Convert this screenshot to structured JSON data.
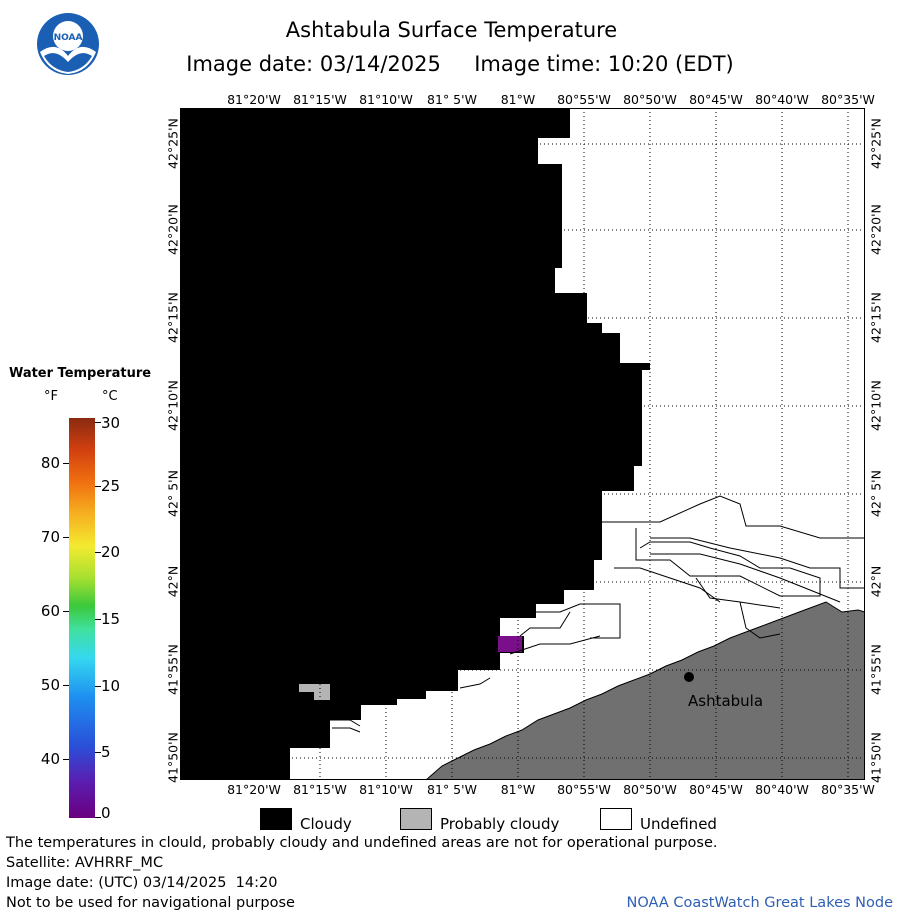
{
  "title": "Ashtabula Surface Temperature",
  "subtitle": "Image date: 03/14/2025     Image time: 10:20 (EDT)",
  "logo_text": "NOAA",
  "map": {
    "lon_labels": [
      "81°20'W",
      "81°15'W",
      "81°10'W",
      "81° 5'W",
      "81°W",
      "80°55'W",
      "80°50'W",
      "80°45'W",
      "80°40'W",
      "80°35'W"
    ],
    "lat_labels": [
      "42°25'N",
      "42°20'N",
      "42°15'N",
      "42°10'N",
      "42° 5'N",
      "42°N",
      "41°55'N",
      "41°50'N"
    ],
    "city": "Ashtabula",
    "colors": {
      "cloudy": "#000000",
      "probably_cloudy": "#b4b4b4",
      "undefined": "#ffffff",
      "land": "#707070",
      "warm_pixel": "#7a0f8a"
    }
  },
  "legend": {
    "title": "Water Temperature",
    "unit_f": "°F",
    "unit_c": "°C",
    "f_ticks": [
      "80",
      "70",
      "60",
      "50",
      "40"
    ],
    "c_ticks": [
      "30",
      "25",
      "20",
      "15",
      "10",
      "5",
      "0"
    ]
  },
  "key": {
    "cloudy": "Cloudy",
    "probably_cloudy": "Probably cloudy",
    "undefined": "Undefined"
  },
  "footer": {
    "line1": "The temperatures in clould, probably cloudy and undefined areas are not for operational purpose.",
    "line2": "Satellite: AVHRRF_MC",
    "line3": "Image date: (UTC) 03/14/2025  14:20",
    "line4": "Not to be used for navigational purpose",
    "credit": "NOAA CoastWatch Great Lakes Node"
  }
}
